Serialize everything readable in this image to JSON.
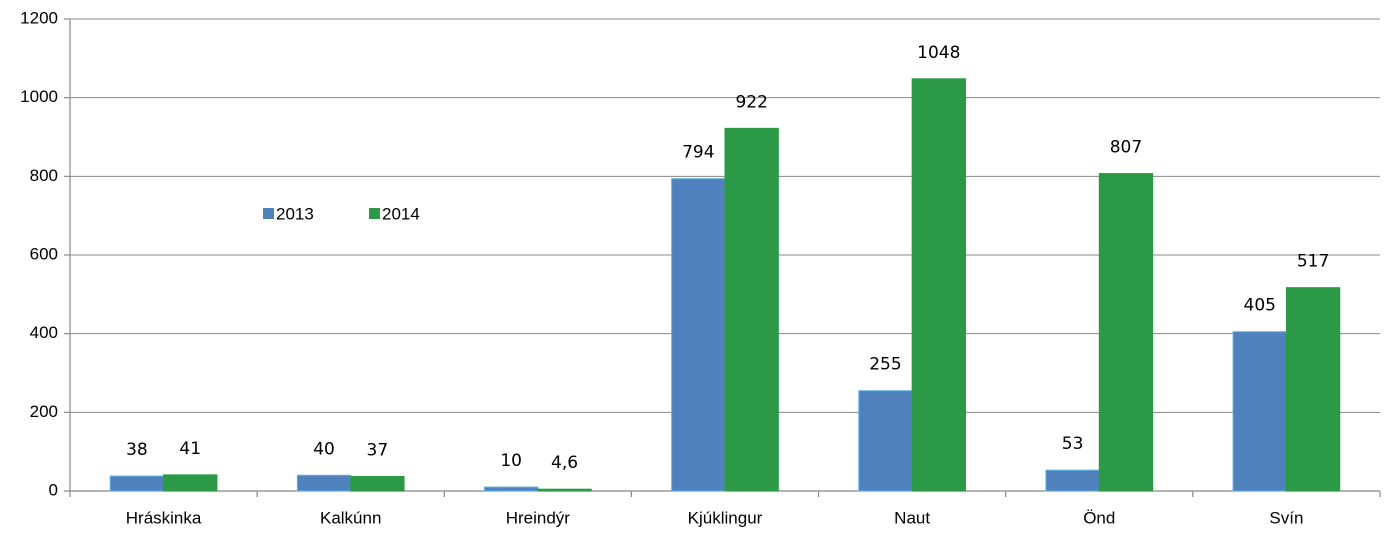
{
  "chart_data": {
    "type": "bar",
    "categories": [
      "Hráskinka",
      "Kalkúnn",
      "Hreindýr",
      "Kjúklingur",
      "Naut",
      "Önd",
      "Svín"
    ],
    "series": [
      {
        "name": "2013",
        "color": "#4f81bd",
        "values": [
          38,
          40,
          10,
          794,
          255,
          53,
          405
        ]
      },
      {
        "name": "2014",
        "color": "#2b9945",
        "values": [
          41,
          37,
          4.6,
          922,
          1048,
          807,
          517
        ],
        "value_labels": [
          "41",
          "37",
          "4,6",
          "922",
          "1048",
          "807",
          "517"
        ]
      }
    ],
    "ylim": [
      0,
      1200
    ],
    "yticks": [
      0,
      200,
      400,
      600,
      800,
      1000,
      1200
    ],
    "grid": true
  }
}
